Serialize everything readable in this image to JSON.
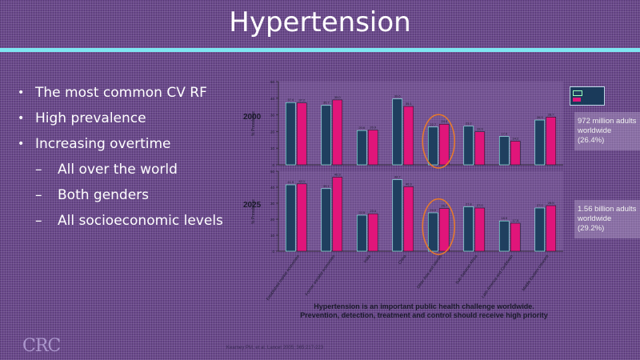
{
  "title": "Hypertension",
  "bullets": [
    {
      "level": 1,
      "text": "The most common CV RF"
    },
    {
      "level": 1,
      "text": "High prevalence"
    },
    {
      "level": 1,
      "text": "Increasing overtime"
    },
    {
      "level": 2,
      "text": "All over the world"
    },
    {
      "level": 2,
      "text": "Both genders"
    },
    {
      "level": 2,
      "text": "All socioeconomic levels"
    }
  ],
  "side_notes": [
    {
      "text": "972 million adults worldwide (26.4%)"
    },
    {
      "text": "1.56 billion adults worldwide (29.2%)"
    }
  ],
  "caption_line1": "Hypertension is an important public health challenge worldwide.",
  "caption_line2": "Prevention, detection, treatment and control should receive high priority",
  "logo_text": "CRC",
  "reference": "Kearney PM, et al. Lancet 2005; 365:217-223",
  "colors": {
    "men": "#1f3f5f",
    "women": "#e0157a",
    "highlight": "#e87a2a",
    "title_bar": "#7fe6f2"
  },
  "chart_data": [
    {
      "type": "bar",
      "title": "2000",
      "ylabel": "% Prevalence",
      "categories": [
        "Established market economies",
        "Former socialist economies",
        "India",
        "China",
        "Other Asia and islands",
        "Sub-Saharan Africa",
        "Latin America and Caribbean",
        "Middle Eastern crescent"
      ],
      "series": [
        {
          "values": [
            37.4,
            35.7,
            20.6,
            39.6,
            22.7,
            23.2,
            17.0,
            26.9
          ]
        },
        {
          "values": [
            37.2,
            39.0,
            20.9,
            35.1,
            24.4,
            19.9,
            14.2,
            28.7
          ]
        }
      ],
      "ylim": [
        0,
        50
      ],
      "highlight_category": "Other Asia and islands"
    },
    {
      "type": "bar",
      "title": "2025",
      "ylabel": "% Prevalence",
      "categories": [
        "Established market economies",
        "Former socialist economies",
        "India",
        "China",
        "Other Asia and islands",
        "Sub-Saharan Africa",
        "Latin America and Caribbean",
        "Middle Eastern crescent"
      ],
      "series": [
        {
          "values": [
            41.5,
            39.1,
            22.5,
            44.7,
            24.0,
            27.8,
            18.9,
            27.0
          ]
        },
        {
          "values": [
            42.1,
            46.3,
            23.4,
            40.3,
            26.7,
            27.0,
            17.5,
            28.5
          ]
        }
      ],
      "ylim": [
        0,
        50
      ],
      "highlight_category": "Other Asia and islands"
    }
  ]
}
